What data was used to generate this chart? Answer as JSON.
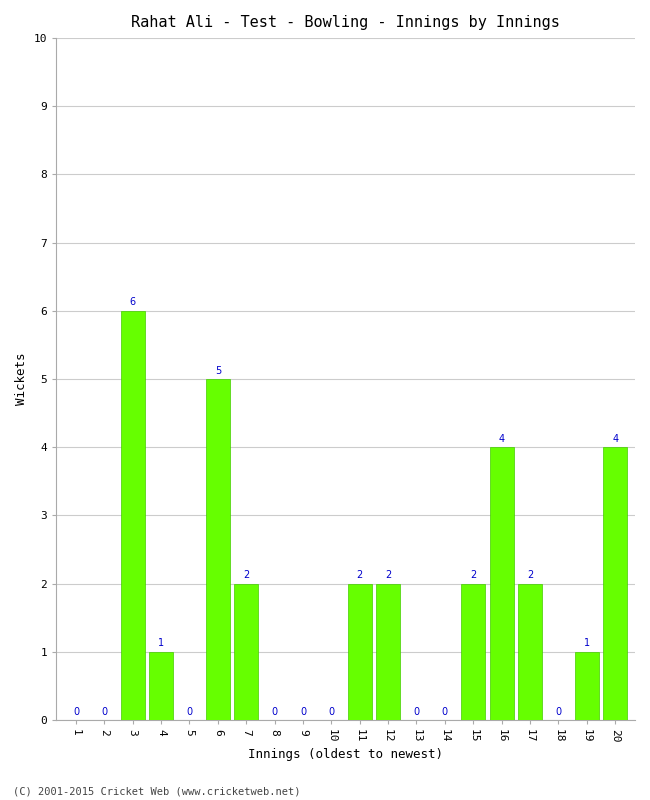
{
  "title": "Rahat Ali - Test - Bowling - Innings by Innings",
  "xlabel": "Innings (oldest to newest)",
  "ylabel": "Wickets",
  "footnote": "(C) 2001-2015 Cricket Web (www.cricketweb.net)",
  "innings": [
    1,
    2,
    3,
    4,
    5,
    6,
    7,
    8,
    9,
    10,
    11,
    12,
    13,
    14,
    15,
    16,
    17,
    18,
    19,
    20
  ],
  "wickets": [
    0,
    0,
    6,
    1,
    0,
    5,
    2,
    0,
    0,
    0,
    2,
    2,
    0,
    0,
    2,
    4,
    2,
    0,
    1,
    4
  ],
  "bar_color": "#66ff00",
  "bar_edge_color": "#44cc00",
  "label_color": "#0000cc",
  "ylim": [
    0,
    10
  ],
  "yticks": [
    0,
    1,
    2,
    3,
    4,
    5,
    6,
    7,
    8,
    9,
    10
  ],
  "background_color": "#ffffff",
  "grid_color": "#cccccc",
  "title_fontsize": 11,
  "axis_label_fontsize": 9,
  "tick_fontsize": 8,
  "bar_label_fontsize": 7,
  "footnote_fontsize": 7.5
}
